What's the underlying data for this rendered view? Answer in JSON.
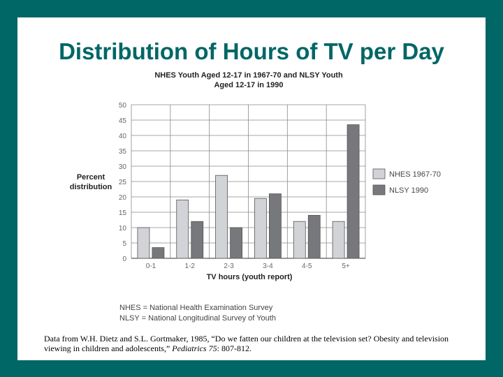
{
  "slide": {
    "title": "Distribution of Hours of TV per Day",
    "caption": {
      "text_before": "Data from W.H. Dietz and S.L. Gortmaker, 1985, “Do we fatten our children at the television set? Obesity and television viewing in children and adolescents,” ",
      "journal": "Pediatrics 75",
      "text_after": ": 807-812."
    },
    "abbreviations": [
      "NHES = National Health Examination Survey",
      "NLSY = National Longitudinal Survey of Youth"
    ]
  },
  "chart_data": {
    "type": "bar",
    "title_lines": [
      "NHES Youth Aged 12-17 in 1967-70 and NLSY Youth",
      "Aged 12-17 in 1990"
    ],
    "xlabel": "TV hours (youth report)",
    "ylabel_lines": [
      "Percent",
      "distribution"
    ],
    "categories": [
      "0-1",
      "1-2",
      "2-3",
      "3-4",
      "4-5",
      "5+"
    ],
    "yticks": [
      0,
      5,
      10,
      15,
      20,
      25,
      30,
      35,
      40,
      45,
      50
    ],
    "ylim": [
      0,
      50
    ],
    "grid": true,
    "legend_position": "right",
    "series": [
      {
        "name": "NHES 1967-70",
        "color": "#d2d3d6",
        "values": [
          10,
          19,
          27,
          19.5,
          12,
          12
        ]
      },
      {
        "name": "NLSY 1990",
        "color": "#77787b",
        "values": [
          3.5,
          12,
          10,
          21,
          14,
          43.5
        ]
      }
    ]
  }
}
